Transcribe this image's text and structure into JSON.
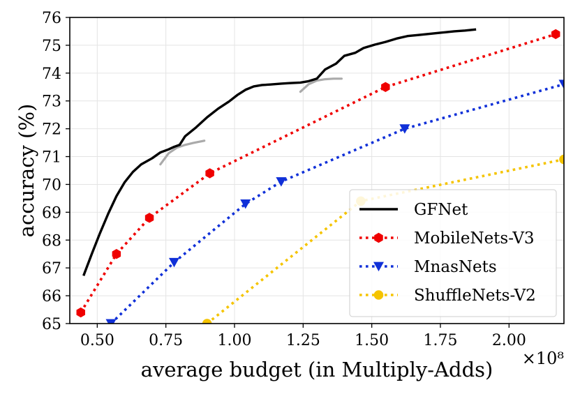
{
  "chart_data": {
    "type": "line",
    "xlabel": "average budget (in Multiply-Adds)",
    "ylabel": "accuracy (%)",
    "x_scale_label": "×10⁸",
    "xlim": [
      0.4,
      2.2
    ],
    "ylim": [
      65,
      76
    ],
    "grid": true,
    "legend_position": "lower-right",
    "x_ticks": [
      0.5,
      0.75,
      1.0,
      1.25,
      1.5,
      1.75,
      2.0
    ],
    "x_tick_labels": [
      "0.50",
      "0.75",
      "1.00",
      "1.25",
      "1.50",
      "1.75",
      "2.00"
    ],
    "y_ticks": [
      65,
      66,
      67,
      68,
      69,
      70,
      71,
      72,
      73,
      74,
      75,
      76
    ],
    "y_tick_labels": [
      "65",
      "66",
      "67",
      "68",
      "69",
      "70",
      "71",
      "72",
      "73",
      "74",
      "75",
      "76"
    ],
    "series": [
      {
        "name": "GFNet",
        "style": "solid",
        "marker": "none",
        "color": "#000000",
        "x": [
          0.45,
          0.48,
          0.51,
          0.54,
          0.57,
          0.6,
          0.63,
          0.66,
          0.7,
          0.73,
          0.76,
          0.78,
          0.8,
          0.82,
          0.86,
          0.9,
          0.94,
          0.98,
          1.01,
          1.04,
          1.07,
          1.1,
          1.13,
          1.17,
          1.2,
          1.24,
          1.27,
          1.3,
          1.33,
          1.37,
          1.4,
          1.44,
          1.47,
          1.51,
          1.55,
          1.59,
          1.63,
          1.67,
          1.71,
          1.75,
          1.8,
          1.84,
          1.88
        ],
        "y": [
          66.72,
          67.5,
          68.25,
          68.95,
          69.58,
          70.08,
          70.45,
          70.72,
          70.94,
          71.15,
          71.26,
          71.35,
          71.42,
          71.73,
          72.05,
          72.41,
          72.72,
          72.98,
          73.21,
          73.4,
          73.52,
          73.57,
          73.59,
          73.62,
          73.64,
          73.66,
          73.71,
          73.8,
          74.13,
          74.34,
          74.62,
          74.73,
          74.9,
          75.02,
          75.12,
          75.24,
          75.33,
          75.37,
          75.41,
          75.45,
          75.5,
          75.53,
          75.57
        ]
      },
      {
        "name": "MobileNets-V3",
        "style": "dotted",
        "marker": "hexagon",
        "color": "#ef0000",
        "x": [
          0.44,
          0.57,
          0.69,
          0.91,
          1.55,
          2.17
        ],
        "y": [
          65.4,
          67.5,
          68.8,
          70.4,
          73.5,
          75.4
        ]
      },
      {
        "name": "MnasNets",
        "style": "dotted",
        "marker": "triangle-down",
        "color": "#1030d8",
        "x": [
          0.55,
          0.78,
          1.04,
          1.17,
          1.62,
          2.2
        ],
        "y": [
          65.0,
          67.2,
          69.3,
          70.1,
          72.0,
          73.6
        ]
      },
      {
        "name": "ShuffleNets-V2",
        "style": "dotted",
        "marker": "circle",
        "color": "#f5c400",
        "x": [
          0.9,
          1.46,
          2.2
        ],
        "y": [
          65.0,
          69.4,
          70.9
        ]
      }
    ],
    "annotations": [
      {
        "type": "gray-segment",
        "x": [
          0.73,
          0.76,
          0.79,
          0.82,
          0.85,
          0.89
        ],
        "y": [
          70.72,
          71.12,
          71.32,
          71.42,
          71.49,
          71.57
        ]
      },
      {
        "type": "gray-segment",
        "x": [
          1.24,
          1.27,
          1.3,
          1.33,
          1.36,
          1.39
        ],
        "y": [
          73.33,
          73.6,
          73.73,
          73.78,
          73.8,
          73.8
        ]
      }
    ]
  }
}
